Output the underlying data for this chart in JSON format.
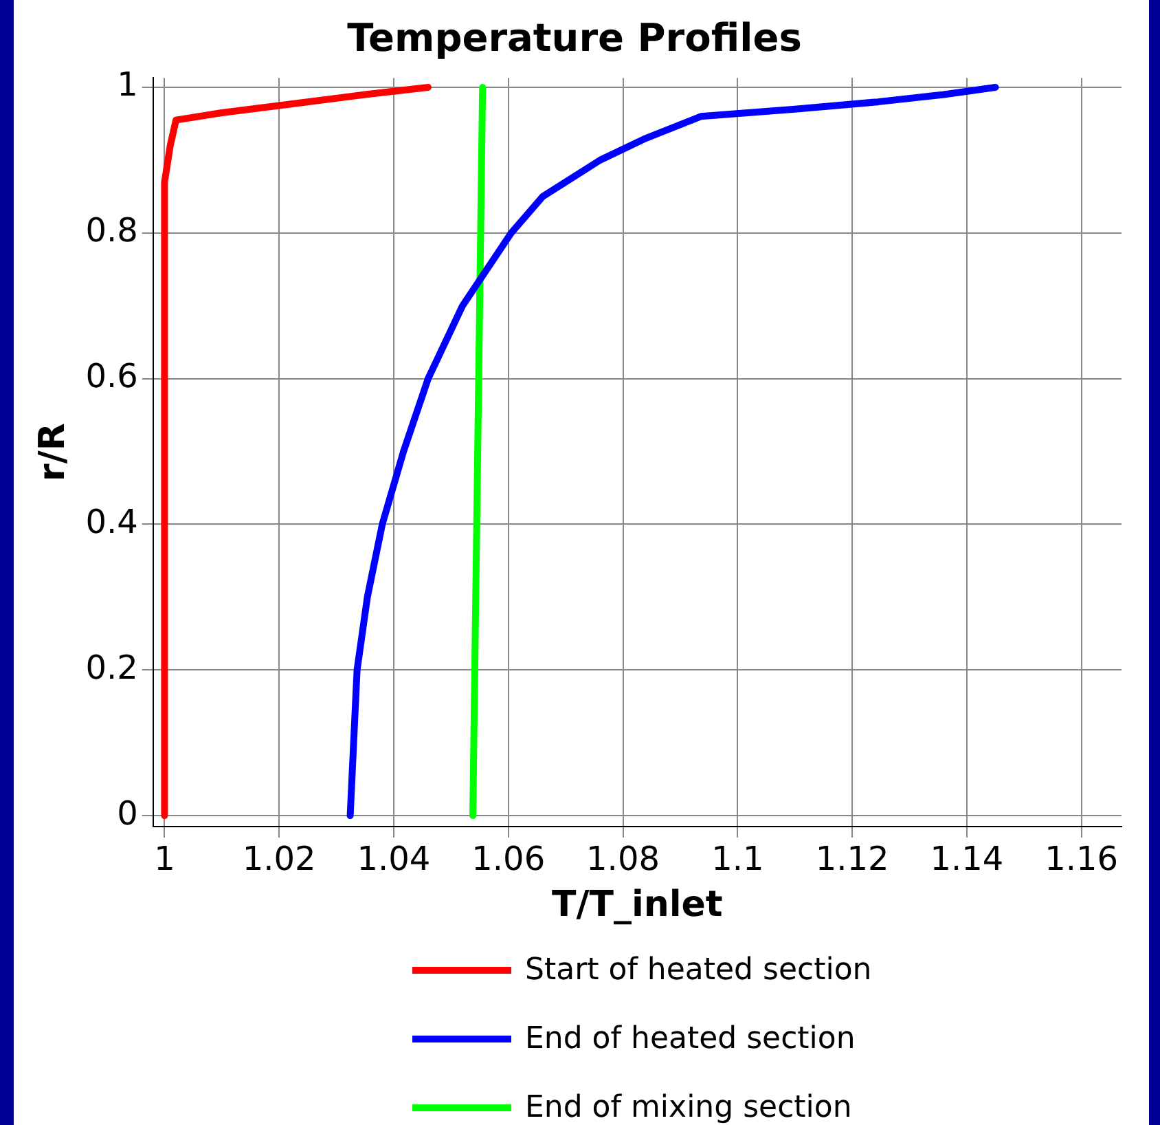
{
  "chart_data": {
    "type": "line",
    "title": "Temperature Profiles",
    "xlabel": "T/T_inlet",
    "ylabel": "r/R",
    "xlim": [
      0.998,
      1.167
    ],
    "xticks": [
      1,
      1.02,
      1.04,
      1.06,
      1.08,
      1.1,
      1.12,
      1.14,
      1.16
    ],
    "ylim": [
      -0.015,
      1.013
    ],
    "yticks": [
      0,
      0.2,
      0.4,
      0.6,
      0.8,
      1
    ],
    "grid": true,
    "legend": "bottom",
    "marker": "none",
    "line_style": "solid",
    "series": [
      {
        "name": "Start of heated section",
        "color": "#ff0000",
        "x": [
          1,
          1,
          1.001,
          1.002,
          1.01,
          1.02,
          1.035,
          1.046
        ],
        "values": [
          0,
          0.87,
          0.92,
          0.955,
          0.965,
          0.975,
          0.99,
          1
        ]
      },
      {
        "name": "End of heated section",
        "color": "#0000ff",
        "x": [
          1.0324,
          1.033,
          1.0336,
          1.0354,
          1.038,
          1.0417,
          1.046,
          1.052,
          1.0605,
          1.066,
          1.076,
          1.084,
          1.0936,
          1.11,
          1.1245,
          1.136,
          1.145
        ],
        "values": [
          0,
          0.1,
          0.2,
          0.3,
          0.4,
          0.5,
          0.6,
          0.7,
          0.8,
          0.85,
          0.9,
          0.93,
          0.96,
          0.97,
          0.98,
          0.99,
          1
        ]
      },
      {
        "name": "End of mixing section",
        "color": "#00ff00",
        "x": [
          1.0538,
          1.0555
        ],
        "values": [
          0,
          1
        ]
      }
    ]
  }
}
